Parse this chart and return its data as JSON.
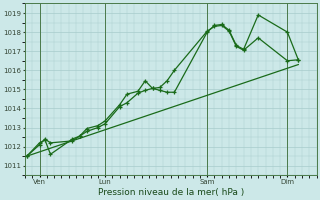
{
  "xlabel": "Pression niveau de la mer( hPa )",
  "bg_color": "#cce8e8",
  "grid_color": "#a8cccc",
  "line_color": "#1a6b1a",
  "spine_color": "#4a7a4a",
  "ylim": [
    1010.5,
    1019.5
  ],
  "yticks": [
    1011,
    1012,
    1013,
    1014,
    1015,
    1016,
    1017,
    1018,
    1019
  ],
  "xlim": [
    0,
    8.0
  ],
  "vlines": [
    0.4,
    2.2,
    5.0,
    7.2
  ],
  "xtick_pos": [
    0.4,
    2.2,
    5.0,
    7.2
  ],
  "xtick_labels": [
    "Ven",
    "Lun",
    "Sam",
    "Dim"
  ],
  "series1_x": [
    0.05,
    0.4,
    0.55,
    0.7,
    1.3,
    1.5,
    1.7,
    2.0,
    2.2,
    2.6,
    2.8,
    3.1,
    3.3,
    3.5,
    3.7,
    3.9,
    4.1,
    5.0,
    5.2,
    5.4,
    5.6,
    5.8,
    6.0,
    6.4,
    7.2,
    7.5
  ],
  "series1_y": [
    1011.5,
    1012.1,
    1012.4,
    1012.2,
    1012.3,
    1012.55,
    1012.8,
    1013.0,
    1013.2,
    1014.1,
    1014.3,
    1014.8,
    1014.95,
    1015.05,
    1015.1,
    1015.45,
    1016.0,
    1018.05,
    1018.3,
    1018.35,
    1018.05,
    1017.25,
    1017.05,
    1017.7,
    1016.5,
    1016.55
  ],
  "series2_x": [
    0.05,
    0.4,
    0.55,
    0.7,
    1.3,
    1.5,
    1.7,
    2.0,
    2.2,
    2.6,
    2.8,
    3.1,
    3.3,
    3.5,
    3.7,
    3.9,
    4.1,
    5.0,
    5.2,
    5.4,
    5.6,
    5.8,
    6.0,
    6.4,
    7.2,
    7.5
  ],
  "series2_y": [
    1011.5,
    1012.2,
    1012.35,
    1011.6,
    1012.4,
    1012.55,
    1012.95,
    1013.1,
    1013.35,
    1014.2,
    1014.75,
    1014.9,
    1015.45,
    1015.05,
    1014.95,
    1014.85,
    1014.85,
    1018.0,
    1018.35,
    1018.4,
    1018.1,
    1017.3,
    1017.1,
    1018.9,
    1018.0,
    1016.55
  ],
  "trend_x": [
    0.05,
    7.5
  ],
  "trend_y": [
    1011.5,
    1016.3
  ]
}
